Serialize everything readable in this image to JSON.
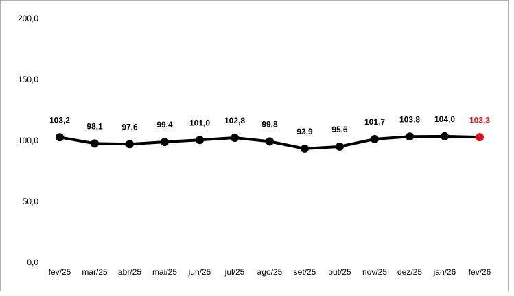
{
  "chart_data": {
    "type": "line",
    "categories": [
      "fev/25",
      "mar/25",
      "abr/25",
      "mai/25",
      "jun/25",
      "jul/25",
      "ago/25",
      "set/25",
      "out/25",
      "nov/25",
      "dez/25",
      "jan/26",
      "fev/26"
    ],
    "series": [
      {
        "color": "#000000",
        "values": [
          103.2,
          98.1,
          97.6,
          99.4,
          101.0,
          102.8,
          99.8,
          93.9,
          95.6,
          101.7,
          103.8,
          104.0,
          103.3
        ],
        "value_labels": [
          "103,2",
          "98,1",
          "97,6",
          "99,4",
          "101,0",
          "102,8",
          "99,8",
          "93,9",
          "95,6",
          "101,7",
          "103,8",
          "104,0",
          "103,3"
        ],
        "point_colors": [
          "#000000",
          "#000000",
          "#000000",
          "#000000",
          "#000000",
          "#000000",
          "#000000",
          "#000000",
          "#000000",
          "#000000",
          "#000000",
          "#000000",
          "#e0141e"
        ]
      }
    ],
    "ylim": [
      0,
      200
    ],
    "yticks": [
      {
        "value": 0,
        "label": "0,0"
      },
      {
        "value": 50,
        "label": "50,0"
      },
      {
        "value": 100,
        "label": "100,0"
      },
      {
        "value": 150,
        "label": "150,0"
      },
      {
        "value": 200,
        "label": "200,0"
      }
    ],
    "grid": false
  }
}
